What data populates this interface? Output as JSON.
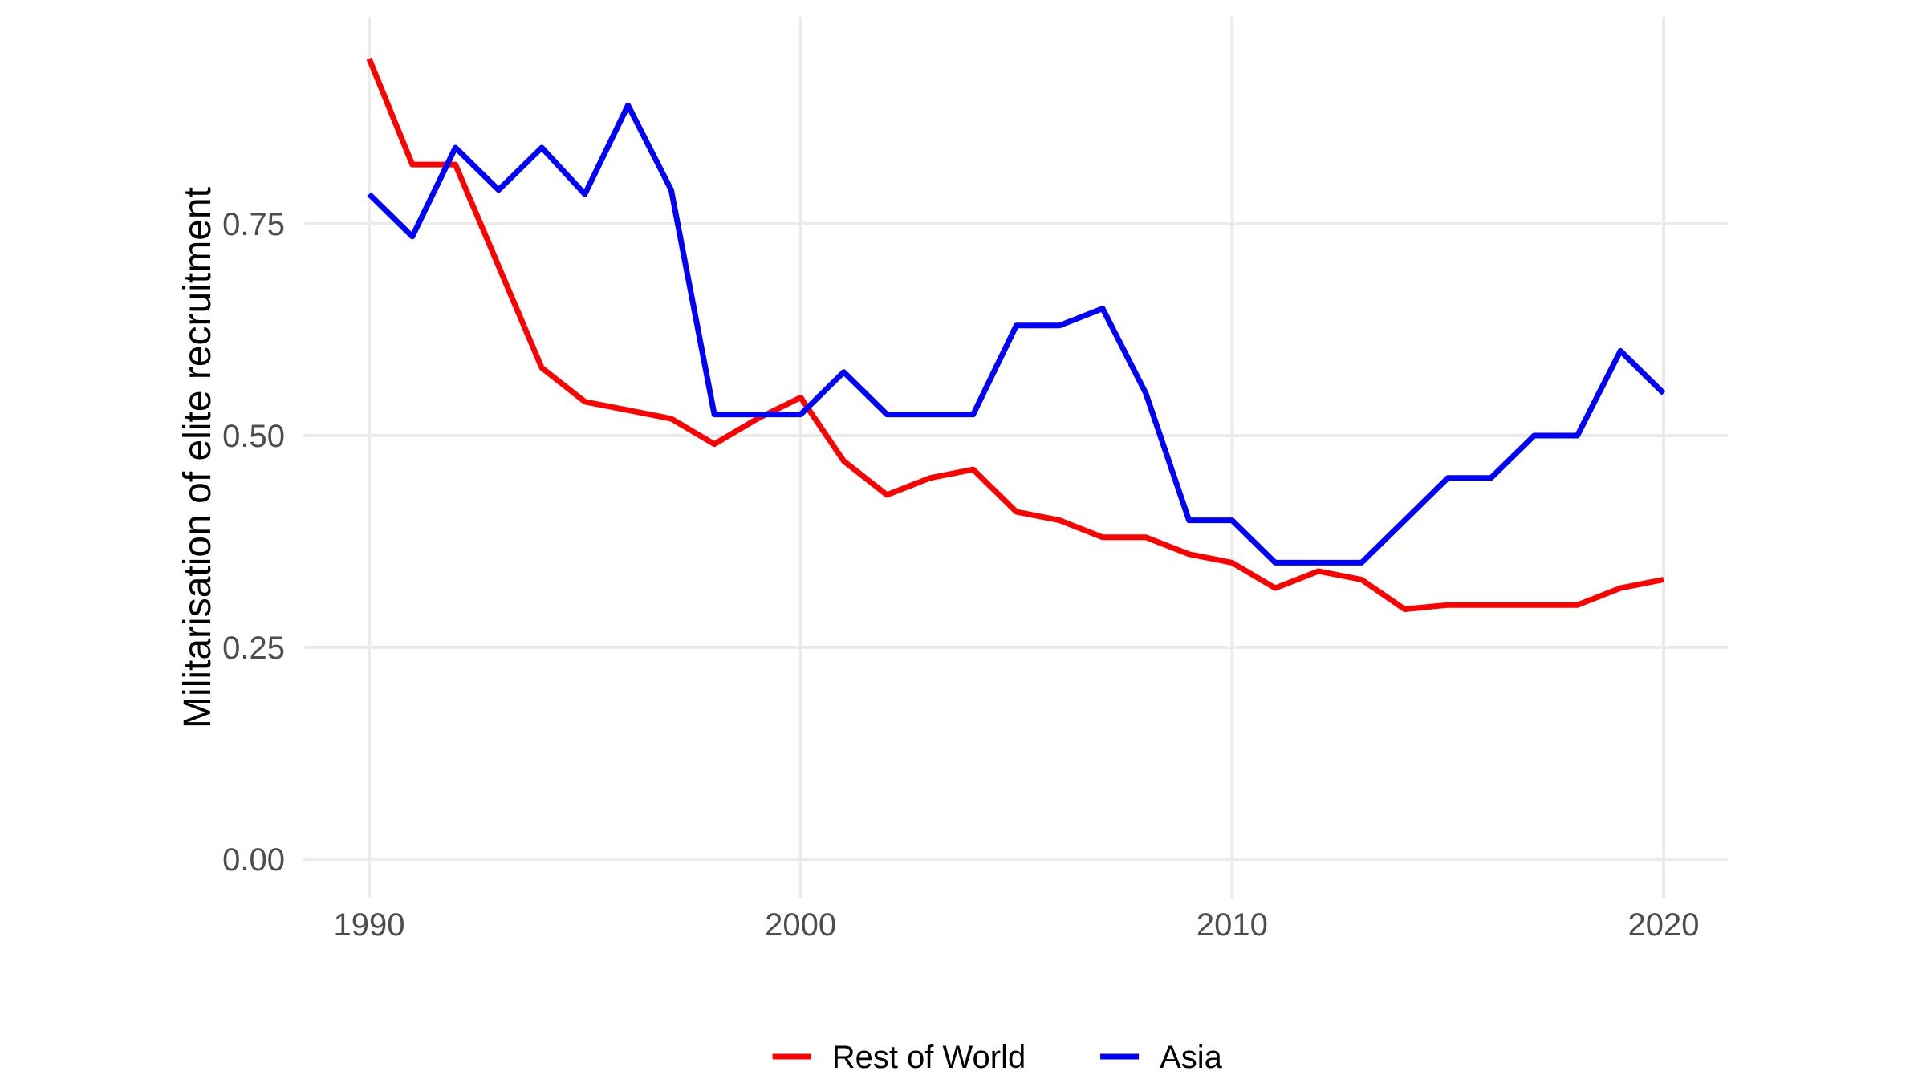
{
  "chart_data": {
    "type": "line",
    "title": "",
    "xlabel": "",
    "ylabel": "Militarisation of elite recruitment",
    "x": [
      1990,
      1991,
      1992,
      1993,
      1994,
      1995,
      1996,
      1997,
      1998,
      1999,
      2000,
      2001,
      2002,
      2003,
      2004,
      2005,
      2006,
      2007,
      2008,
      2009,
      2010,
      2011,
      2012,
      2013,
      2014,
      2015,
      2016,
      2017,
      2018,
      2019,
      2020
    ],
    "series": [
      {
        "name": "Rest of World",
        "color": "#FF0000",
        "values": [
          0.945,
          0.82,
          0.82,
          0.7,
          0.58,
          0.54,
          0.53,
          0.52,
          0.49,
          0.52,
          0.545,
          0.47,
          0.43,
          0.45,
          0.46,
          0.41,
          0.4,
          0.38,
          0.38,
          0.36,
          0.35,
          0.32,
          0.34,
          0.33,
          0.295,
          0.3,
          0.3,
          0.3,
          0.3,
          0.32,
          0.33
        ]
      },
      {
        "name": "Asia",
        "color": "#0000FF",
        "values": [
          0.785,
          0.735,
          0.84,
          0.79,
          0.84,
          0.785,
          0.89,
          0.79,
          0.525,
          0.525,
          0.525,
          0.575,
          0.525,
          0.525,
          0.525,
          0.63,
          0.63,
          0.65,
          0.55,
          0.4,
          0.4,
          0.35,
          0.35,
          0.35,
          0.4,
          0.45,
          0.45,
          0.5,
          0.5,
          0.6,
          0.55
        ]
      }
    ],
    "x_ticks": [
      {
        "value": 1990,
        "label": "1990"
      },
      {
        "value": 2000,
        "label": "2000"
      },
      {
        "value": 2010,
        "label": "2010"
      },
      {
        "value": 2020,
        "label": "2020"
      }
    ],
    "y_ticks": [
      {
        "value": 0.0,
        "label": "0.00"
      },
      {
        "value": 0.25,
        "label": "0.25"
      },
      {
        "value": 0.5,
        "label": "0.50"
      },
      {
        "value": 0.75,
        "label": "0.75"
      }
    ],
    "xlim": [
      1990,
      2020
    ],
    "ylim": [
      0.0,
      0.945
    ],
    "grid": "major-only",
    "legend_position": "bottom-center",
    "legend": [
      {
        "label": "Rest of World",
        "color": "#FF0000"
      },
      {
        "label": "Asia",
        "color": "#0000FF"
      }
    ],
    "colors": {
      "gridline": "#EBEBEB",
      "tick_label": "#4D4D4D",
      "axis_title": "#000000",
      "legend_text": "#000000",
      "background": "#FFFFFF"
    }
  }
}
